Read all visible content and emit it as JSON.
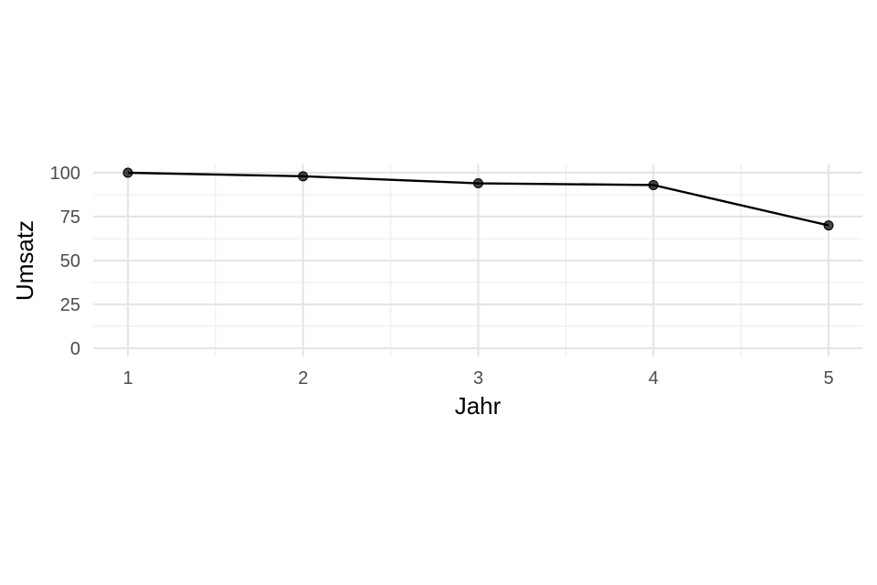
{
  "chart_data": {
    "type": "line",
    "title": "",
    "xlabel": "Jahr",
    "ylabel": "Umsatz",
    "x": [
      1,
      2,
      3,
      4,
      5
    ],
    "series": [
      {
        "values": [
          100,
          98,
          94,
          93,
          70
        ]
      }
    ],
    "xlim": [
      0.8,
      5.2
    ],
    "ylim": [
      0,
      100
    ],
    "x_ticks": [
      "1",
      "2",
      "3",
      "4",
      "5"
    ],
    "y_ticks": [
      "0",
      "25",
      "50",
      "75",
      "100"
    ],
    "x_tick_values": [
      1,
      2,
      3,
      4,
      5
    ],
    "y_tick_values": [
      0,
      25,
      50,
      75,
      100
    ],
    "grid": true,
    "legend": "none",
    "colors": {
      "line": "#000000",
      "grid": "#e6e6e6",
      "tick_text": "#4d4d4d"
    }
  }
}
